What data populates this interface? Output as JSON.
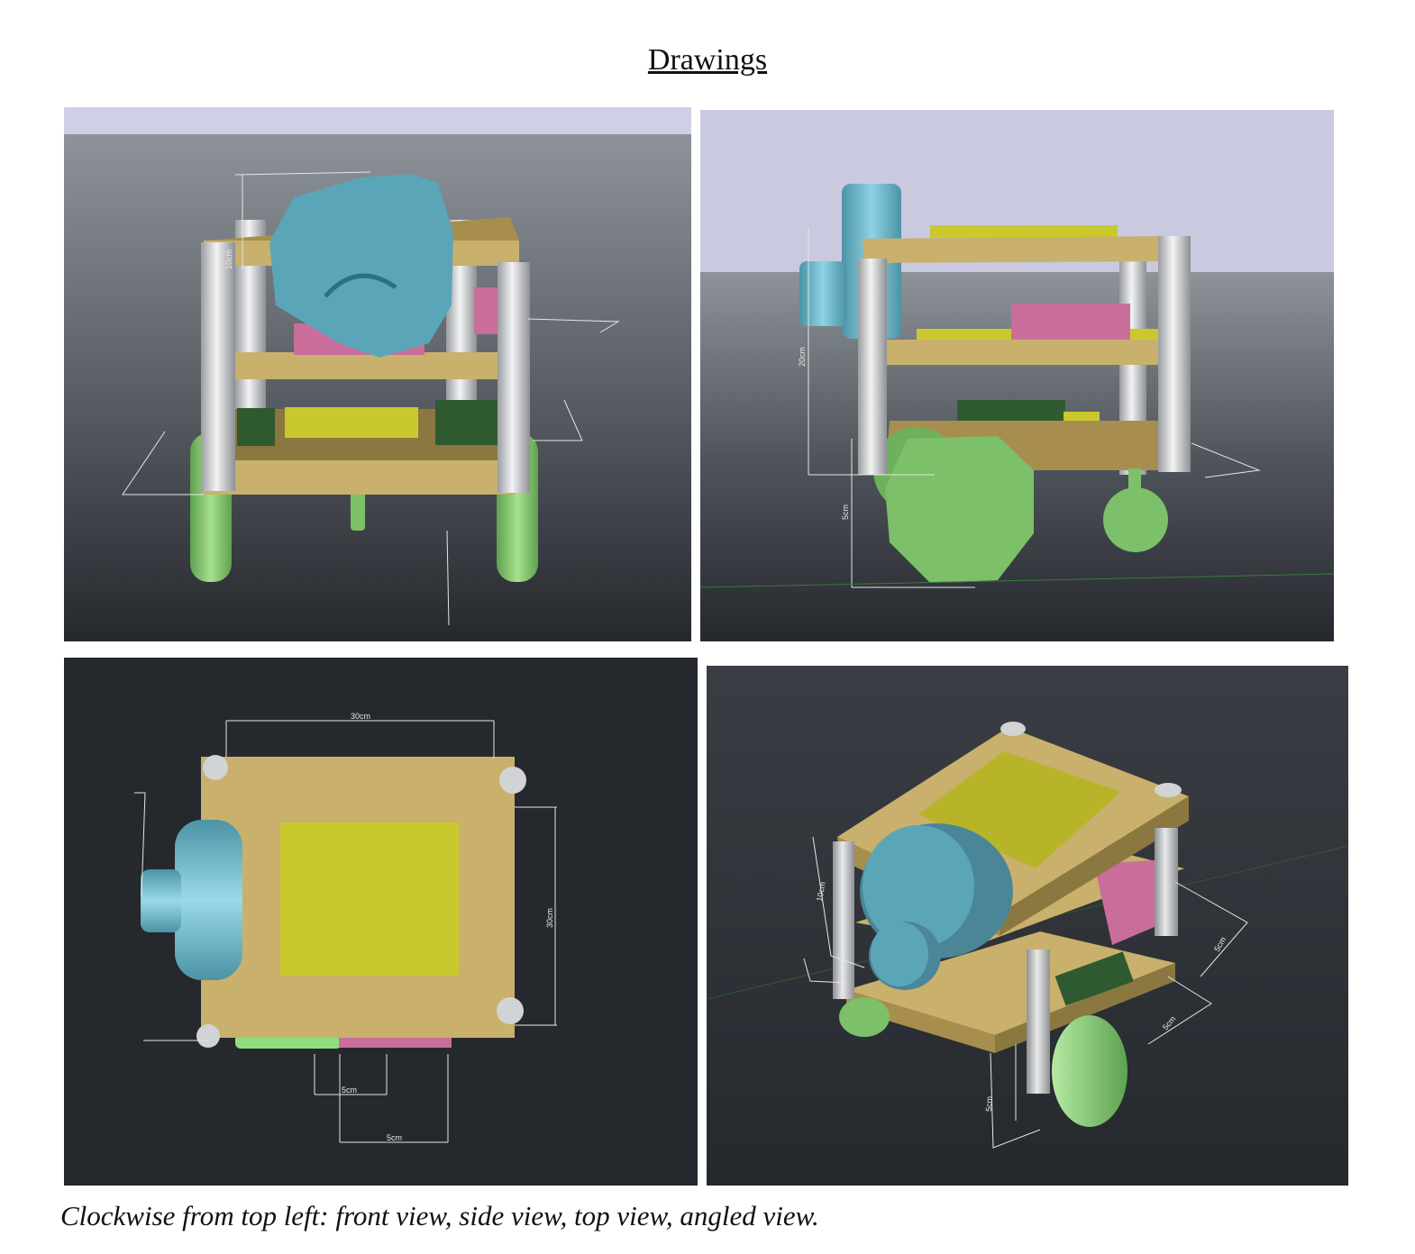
{
  "page": {
    "heading": "Drawings",
    "caption": "Clockwise from top left: front view, side view, top view, angled view."
  },
  "views": {
    "front": {
      "dims": {
        "height": "10cm"
      }
    },
    "side": {
      "dims": {
        "height": "20cm",
        "wheel": "5cm"
      }
    },
    "top": {
      "dims": {
        "width": "30cm",
        "depth": "30cm",
        "gap_a": "5cm",
        "gap_b": "5cm"
      }
    },
    "angled": {
      "dims": {
        "height": "10cm",
        "side_a": "5cm",
        "side_b": "5cm",
        "leg": "5cm"
      }
    }
  },
  "colors": {
    "plate": "#c9b06c",
    "plate_dark": "#a88e4e",
    "motor": "#5aa6b8",
    "wheel": "#7cc06a",
    "battery": "#c96e9a",
    "board": "#c9c92e",
    "module": "#2f5a2f",
    "post": "#d4d7da",
    "sky": "#cdd0e6",
    "floor_top": "#8b9096",
    "floor_bottom": "#23262b"
  }
}
